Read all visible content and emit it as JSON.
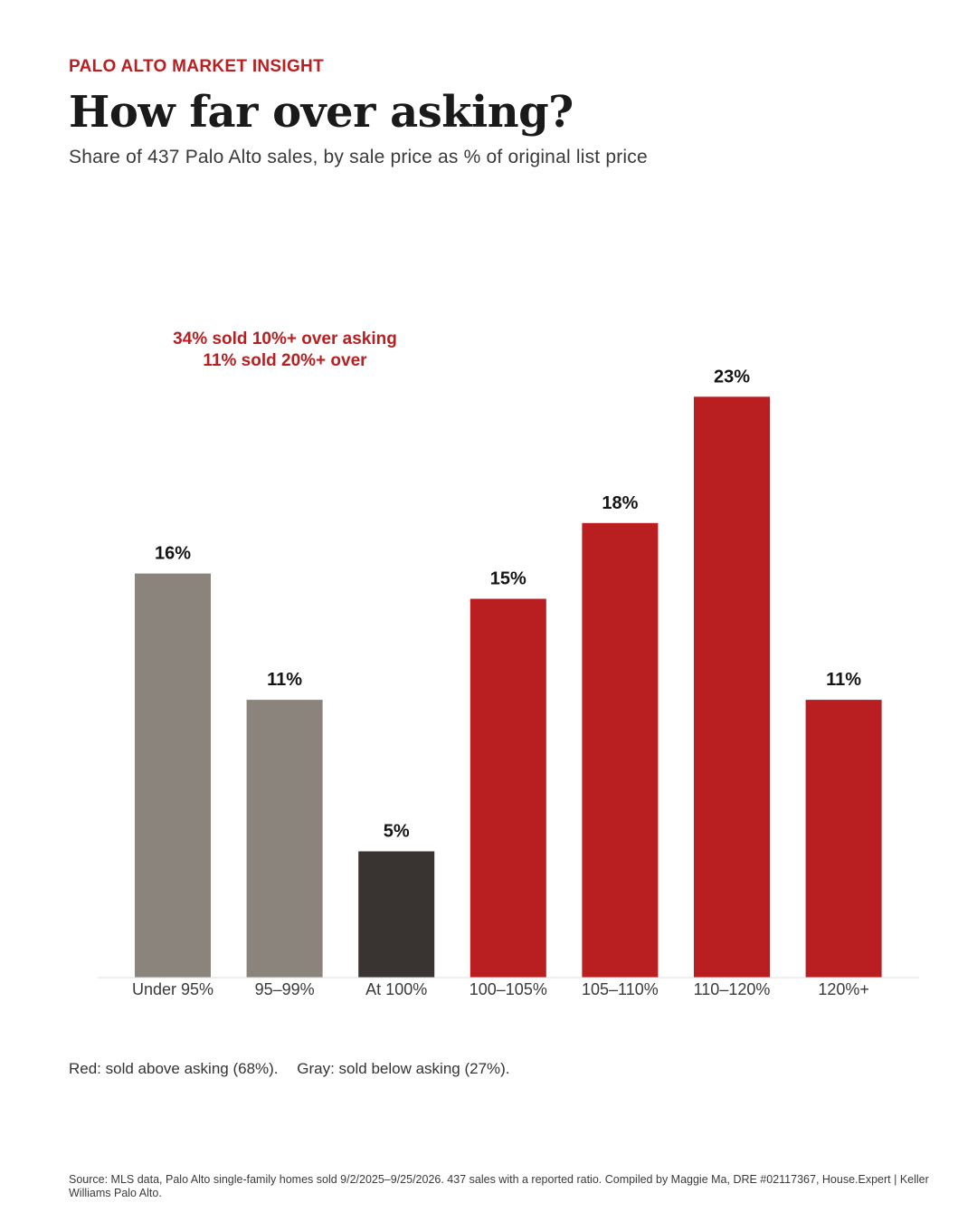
{
  "header": {
    "kicker": "PALO ALTO MARKET INSIGHT",
    "title": "How far over asking?",
    "subtitle": "Share of 437 Palo Alto sales, by sale price as % of original list price"
  },
  "annotation": {
    "line1": "34% sold 10%+ over asking",
    "line2": "11% sold 20%+ over"
  },
  "legend_note": {
    "red": "Red: sold above asking (68%).",
    "gray": "Gray: sold below asking (27%)."
  },
  "source": "Source: MLS data, Palo Alto single-family homes sold 9/2/2025–9/25/2026. 437 sales with a reported ratio. Compiled by Maggie Ma, DRE #02117367, House.Expert | Keller Williams Palo Alto.",
  "colors": {
    "above": "#b91f21",
    "below": "#8b847c",
    "at": "#393431",
    "baseline": "#dddddd"
  },
  "chart_data": {
    "type": "bar",
    "title": "How far over asking?",
    "subtitle": "Share of 437 Palo Alto sales, by sale price as % of original list price",
    "xlabel": "",
    "ylabel": "",
    "ylim": [
      0,
      25
    ],
    "grid": false,
    "categories": [
      "Under 95%",
      "95–99%",
      "At 100%",
      "100–105%",
      "105–110%",
      "110–120%",
      "120%+"
    ],
    "values": [
      16,
      11,
      5,
      15,
      18,
      23,
      11
    ],
    "value_labels": [
      "16%",
      "11%",
      "5%",
      "15%",
      "18%",
      "23%",
      "11%"
    ],
    "groups": [
      "below",
      "below",
      "at",
      "above",
      "above",
      "above",
      "above"
    ]
  }
}
